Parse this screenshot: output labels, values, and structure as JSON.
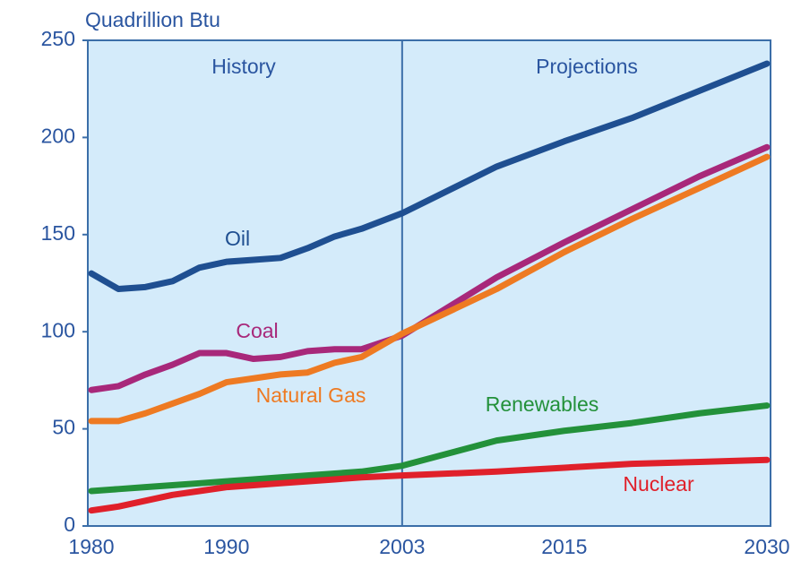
{
  "chart_data": {
    "type": "line",
    "y_axis_label": "Quadrillion Btu",
    "annotations": [
      "History",
      "Projections"
    ],
    "x": [
      1980,
      1982,
      1984,
      1986,
      1988,
      1990,
      1992,
      1994,
      1996,
      1998,
      2000,
      2003,
      2010,
      2015,
      2020,
      2025,
      2030
    ],
    "series": [
      {
        "name": "Oil",
        "color": "#1f4f91",
        "values": [
          130,
          122,
          123,
          126,
          133,
          136,
          137,
          138,
          143,
          149,
          153,
          161,
          185,
          198,
          210,
          224,
          238
        ]
      },
      {
        "name": "Coal",
        "color": "#a8287a",
        "values": [
          70,
          72,
          78,
          83,
          89,
          89,
          86,
          87,
          90,
          91,
          91,
          98,
          128,
          146,
          163,
          180,
          195
        ]
      },
      {
        "name": "Natural Gas",
        "color": "#ee7a22",
        "values": [
          54,
          54,
          58,
          63,
          68,
          74,
          76,
          78,
          79,
          84,
          87,
          99,
          122,
          141,
          158,
          174,
          190
        ]
      },
      {
        "name": "Renewables",
        "color": "#23913a",
        "values": [
          18,
          19,
          20,
          21,
          22,
          23,
          24,
          25,
          26,
          27,
          28,
          31,
          44,
          49,
          53,
          58,
          62
        ]
      },
      {
        "name": "Nuclear",
        "color": "#e0202a",
        "values": [
          8,
          10,
          13,
          16,
          18,
          20,
          21,
          22,
          23,
          24,
          25,
          26,
          28,
          30,
          32,
          33,
          34
        ]
      }
    ],
    "xlim": [
      1980,
      2030
    ],
    "xticks": [
      1980,
      1990,
      2003,
      2015,
      2030
    ],
    "ylim": [
      0,
      250
    ],
    "yticks": [
      0,
      50,
      100,
      150,
      200,
      250
    ]
  }
}
